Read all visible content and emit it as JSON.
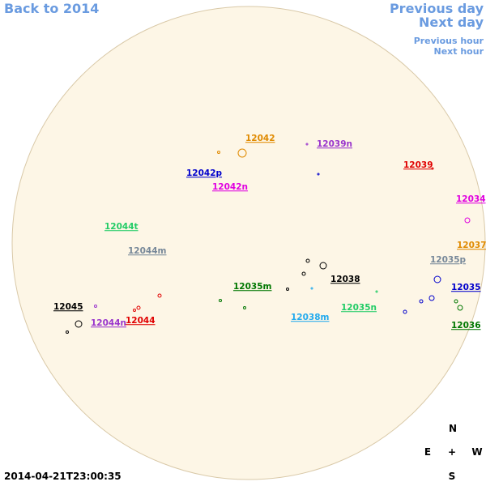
{
  "nav": {
    "back": "Back to 2014",
    "previous_day": "Previous day",
    "next_day": "Next day",
    "previous_hour": "Previous hour",
    "next_hour": "Next hour"
  },
  "regions": [
    "12042",
    "12039n",
    "12039",
    "12042p",
    "12042n",
    "12034",
    "12044t",
    "12044m",
    "12037",
    "12035p",
    "12038",
    "12035m",
    "12035",
    "12045",
    "12035n",
    "12038m",
    "12044n",
    "12044",
    "12036"
  ],
  "compass": {
    "north": "N",
    "east": "E",
    "center": "+",
    "west": "W",
    "south": "S"
  },
  "timestamp": "2014-04-21T23:00:35"
}
